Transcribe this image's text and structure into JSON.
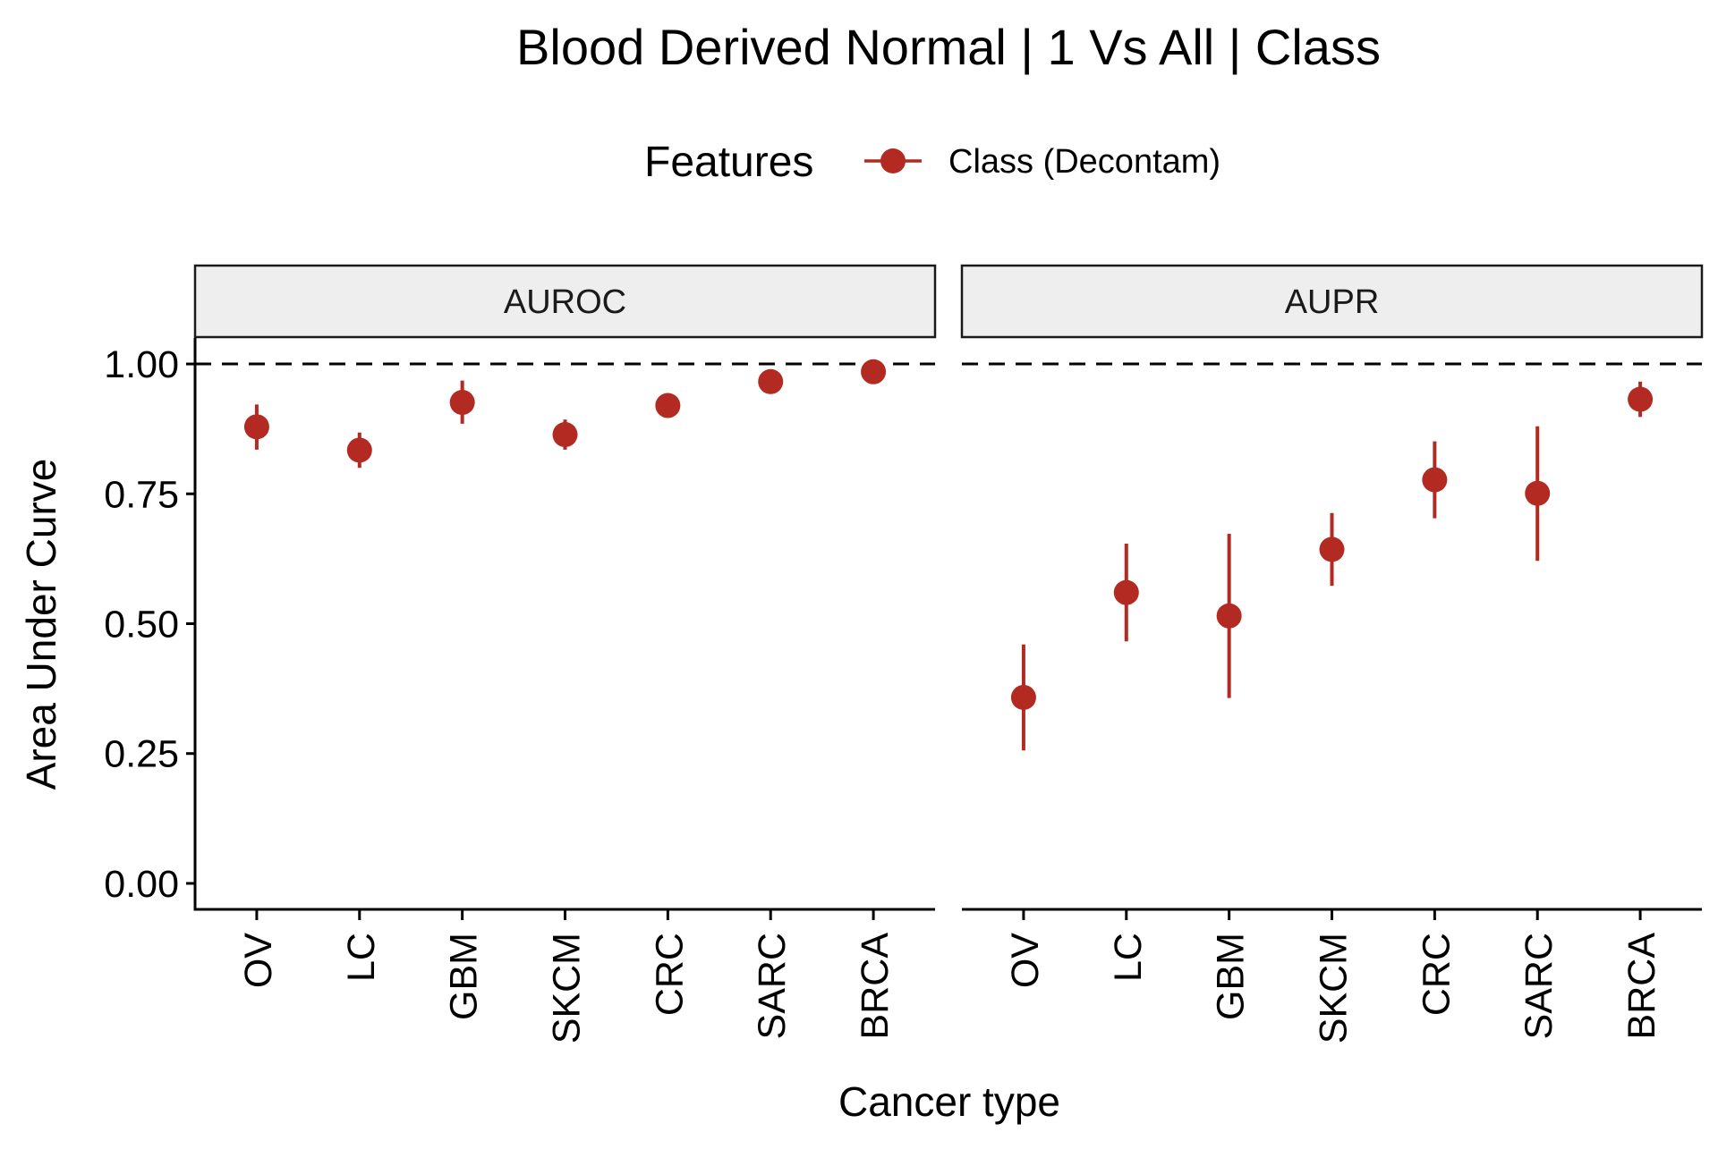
{
  "chart_data": {
    "type": "scatter",
    "title": "Blood Derived Normal | 1 Vs All | Class",
    "xlabel": "Cancer type",
    "ylabel": "Area Under Curve",
    "ylim": [
      -0.05,
      1.05
    ],
    "yticks": [
      0,
      0.25,
      0.5,
      0.75,
      1
    ],
    "ytick_labels": [
      "0.00",
      "0.25",
      "0.50",
      "0.75",
      "1.00"
    ],
    "reference_line": 1.0,
    "grid": false,
    "legend": {
      "title": "Features",
      "position": "top",
      "entries": [
        "Class (Decontam)"
      ]
    },
    "categories": [
      "OV",
      "LC",
      "GBM",
      "SKCM",
      "CRC",
      "SARC",
      "BRCA"
    ],
    "panels": [
      {
        "label": "AUROC",
        "series": [
          {
            "name": "Class (Decontam)",
            "values": [
              0.879,
              0.834,
              0.926,
              0.864,
              0.92,
              0.966,
              0.985
            ],
            "lower": [
              0.835,
              0.8,
              0.885,
              0.835,
              0.905,
              0.955,
              0.975
            ],
            "upper": [
              0.922,
              0.868,
              0.968,
              0.893,
              0.935,
              0.977,
              0.995
            ]
          }
        ]
      },
      {
        "label": "AUPR",
        "series": [
          {
            "name": "Class (Decontam)",
            "values": [
              0.358,
              0.56,
              0.515,
              0.643,
              0.777,
              0.751,
              0.932
            ],
            "lower": [
              0.256,
              0.466,
              0.357,
              0.573,
              0.703,
              0.621,
              0.898
            ],
            "upper": [
              0.46,
              0.654,
              0.673,
              0.713,
              0.851,
              0.88,
              0.966
            ]
          }
        ]
      }
    ]
  },
  "colors": {
    "point": "#B22A22",
    "strip_fill": "#EEEEEE",
    "axis": "#000000",
    "reference_line": "#000000"
  }
}
